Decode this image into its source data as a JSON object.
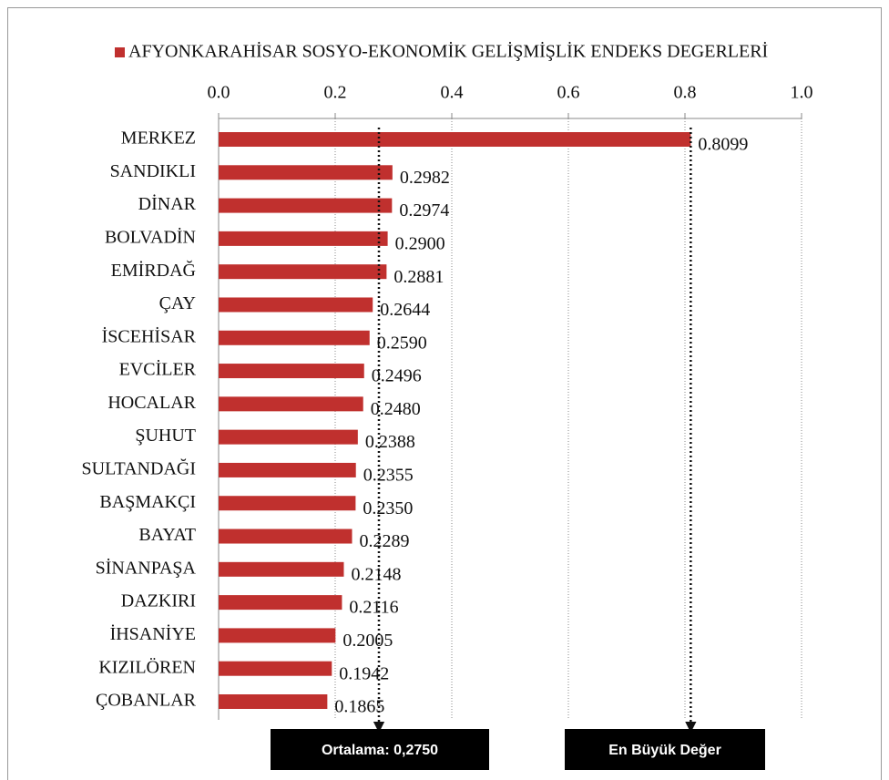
{
  "chart_data": {
    "type": "barh",
    "series": [
      {
        "name": "AFYONKARAHİSAR SOSYO-EKONOMİK GELİŞMİŞLİK ENDEKS DEGERLERİ",
        "color": "#c0302e",
        "values": [
          0.8099,
          0.2982,
          0.2974,
          0.29,
          0.2881,
          0.2644,
          0.259,
          0.2496,
          0.248,
          0.2388,
          0.2355,
          0.235,
          0.2289,
          0.2148,
          0.2116,
          0.2005,
          0.1942,
          0.1865
        ],
        "value_labels": [
          "0.8099",
          "0.2982",
          "0.2974",
          "0.2900",
          "0.2881",
          "0.2644",
          "0.2590",
          "0.2496",
          "0.2480",
          "0.2388",
          "0.2355",
          "0.2350",
          "0.2289",
          "0.2148",
          "0.2116",
          "0.2005",
          "0.1942",
          "0.1865"
        ]
      }
    ],
    "categories": [
      "MERKEZ",
      "SANDIKLI",
      "DİNAR",
      "BOLVADİN",
      "EMİRDAĞ",
      "ÇAY",
      "İSCEHİSAR",
      "EVCİLER",
      "HOCALAR",
      "ŞUHUT",
      "SULTANDAĞI",
      "BAŞMAKÇI",
      "BAYAT",
      "SİNANPAŞA",
      "DAZKIRI",
      "İHSANİYE",
      "KIZILÖREN",
      "ÇOBANLAR"
    ],
    "xlim": [
      0,
      1
    ],
    "xticks": [
      {
        "value": 0,
        "label": "0.0"
      },
      0.2,
      0.4,
      0.6,
      0.8,
      {
        "value": 1,
        "label": "1.0"
      }
    ],
    "grid": true,
    "annotations": [
      {
        "text": "Ortalama: 0,2750",
        "value": 0.275
      },
      {
        "text": "En Büyük Değer",
        "value": 0.8099
      }
    ]
  }
}
